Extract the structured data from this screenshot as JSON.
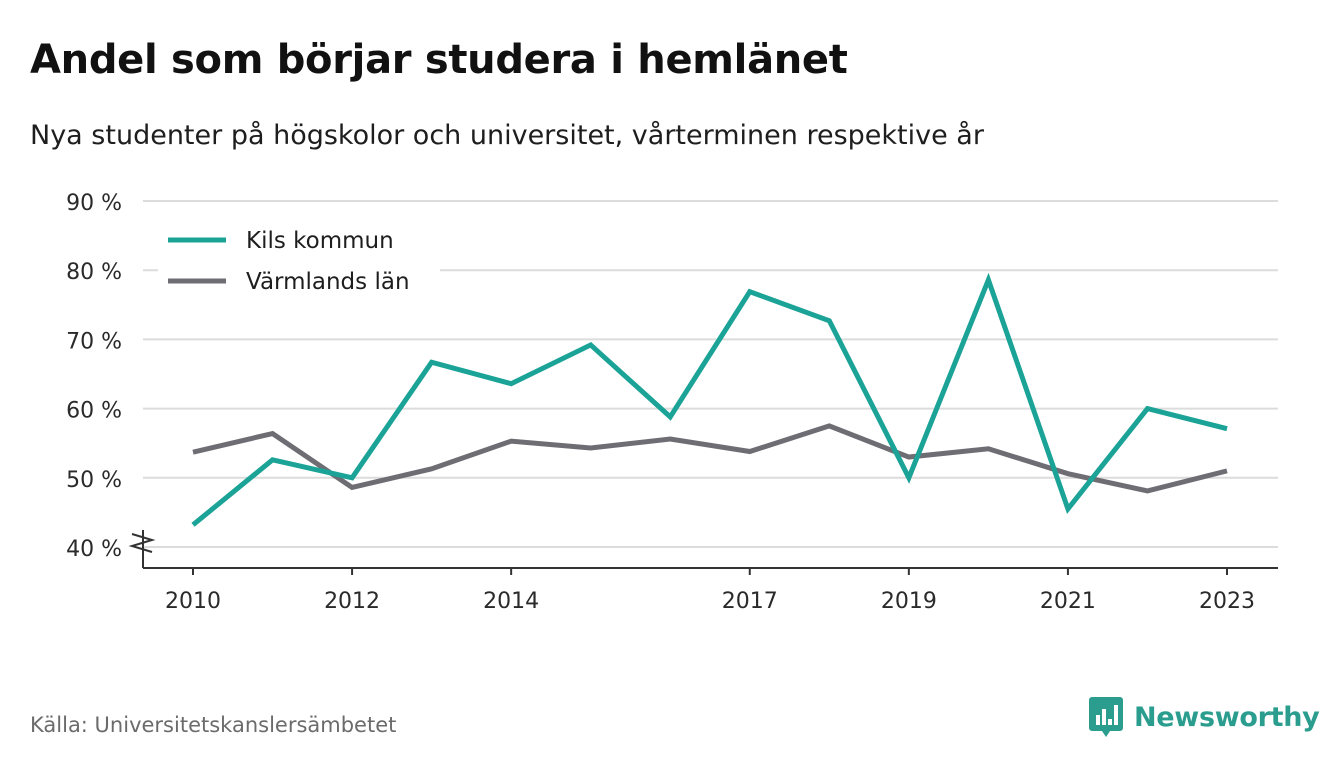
{
  "title": "Andel som börjar studera i hemlänet",
  "subtitle": "Nya studenter på högskolor och universitet, vårterminen respektive år",
  "source": "Källa: Universitetskanslersämbetet",
  "brand": {
    "name": "Newsworthy",
    "icon": "newsworthy-logo-icon",
    "color": "#2a9d8f"
  },
  "chart_data": {
    "type": "line",
    "x": [
      2010,
      2011,
      2012,
      2013,
      2014,
      2015,
      2016,
      2017,
      2018,
      2019,
      2020,
      2021,
      2022,
      2023
    ],
    "x_tick_labels": [
      "2010",
      "2012",
      "2014",
      "2017",
      "2019",
      "2021",
      "2023"
    ],
    "y_tick_labels": [
      "40 %",
      "50 %",
      "60 %",
      "70 %",
      "80 %",
      "90 %"
    ],
    "ylim": [
      40,
      90
    ],
    "y_axis_break": true,
    "grid": "horizontal",
    "legend_position": "top-left",
    "series": [
      {
        "name": "Kils kommun",
        "color": "#1aa396",
        "values": [
          43.2,
          52.6,
          50.0,
          66.7,
          63.6,
          69.2,
          58.8,
          76.9,
          72.7,
          50.0,
          78.6,
          45.5,
          60.0,
          57.1
        ]
      },
      {
        "name": "Värmlands län",
        "color": "#6e6d73",
        "values": [
          53.7,
          56.4,
          48.6,
          51.3,
          55.3,
          54.3,
          55.6,
          53.8,
          57.5,
          53.0,
          54.2,
          50.6,
          48.1,
          51.0
        ]
      }
    ]
  }
}
